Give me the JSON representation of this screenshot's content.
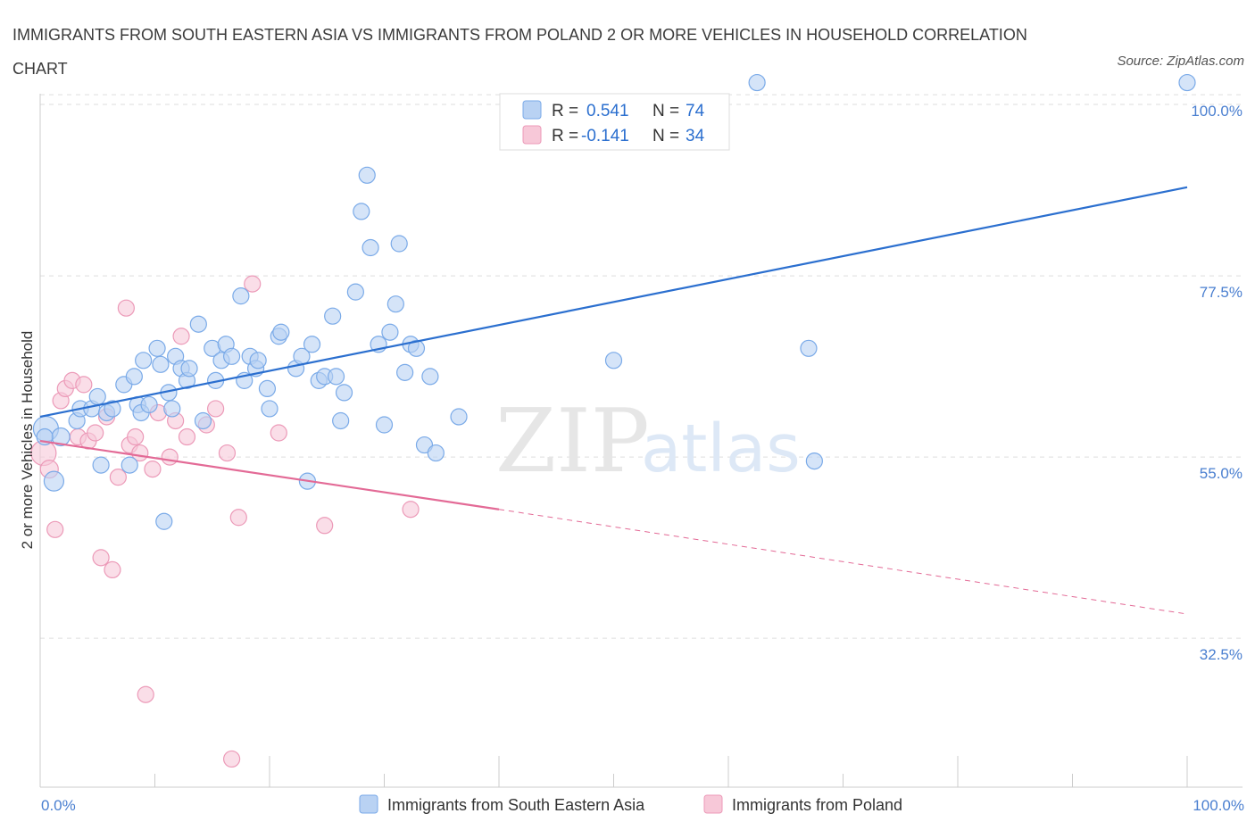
{
  "title": "IMMIGRANTS FROM SOUTH EASTERN ASIA VS IMMIGRANTS FROM POLAND 2 OR MORE VEHICLES IN HOUSEHOLD CORRELATION CHART",
  "source": "Source: ZipAtlas.com",
  "watermark": {
    "zip": "ZIP",
    "atlas": "atlas"
  },
  "colors": {
    "blue": "#7aaae8",
    "blue_fill": "#b9d2f3",
    "blue_line": "#2b6fcf",
    "pink": "#ec9ab8",
    "pink_fill": "#f7c8d8",
    "pink_line": "#e36a96",
    "axis_text": "#4a7fd0",
    "grid": "#dddddd"
  },
  "chart_data": {
    "type": "scatter",
    "xlabel": "",
    "ylabel": "2 or more Vehicles in Household",
    "xlim": [
      0,
      100
    ],
    "ylim": [
      14,
      104
    ],
    "x_tick_labels": [
      "0.0%",
      "100.0%"
    ],
    "y_ticks": [
      32.5,
      55.0,
      77.5,
      100.0
    ],
    "y_tick_labels": [
      "32.5%",
      "55.0%",
      "77.5%",
      "100.0%"
    ],
    "grid": "horizontal dashed",
    "legend": {
      "placement": "top-center",
      "rows": [
        {
          "r_label": "R = ",
          "r_value": "0.541",
          "n_label": "N = ",
          "n_value": "74"
        },
        {
          "r_label": "R = ",
          "r_value": "-0.141",
          "n_label": "N = ",
          "n_value": "34"
        }
      ]
    },
    "series": [
      {
        "name": "Immigrants from South Eastern Asia",
        "color": "#7aaae8",
        "trend": {
          "x": [
            0,
            100
          ],
          "y": [
            60.0,
            88.5
          ]
        },
        "points": [
          [
            0.5,
            58.5
          ],
          [
            1.2,
            52.0
          ],
          [
            1.8,
            57.5
          ],
          [
            3.2,
            59.5
          ],
          [
            3.5,
            61.0
          ],
          [
            4.5,
            61.0
          ],
          [
            5.0,
            62.5
          ],
          [
            5.3,
            54.0
          ],
          [
            5.8,
            60.5
          ],
          [
            6.3,
            61.0
          ],
          [
            7.3,
            64.0
          ],
          [
            7.8,
            54.0
          ],
          [
            8.2,
            65.0
          ],
          [
            8.5,
            61.5
          ],
          [
            8.8,
            60.5
          ],
          [
            9.0,
            67.0
          ],
          [
            9.5,
            61.5
          ],
          [
            10.2,
            68.5
          ],
          [
            10.5,
            66.5
          ],
          [
            10.8,
            47.0
          ],
          [
            11.2,
            63.0
          ],
          [
            11.5,
            61.0
          ],
          [
            11.8,
            67.5
          ],
          [
            12.3,
            66.0
          ],
          [
            12.8,
            64.5
          ],
          [
            13.0,
            66.0
          ],
          [
            13.8,
            71.5
          ],
          [
            14.2,
            59.5
          ],
          [
            15.0,
            68.5
          ],
          [
            15.3,
            64.5
          ],
          [
            15.8,
            67.0
          ],
          [
            16.2,
            69.0
          ],
          [
            16.7,
            67.5
          ],
          [
            17.5,
            75.0
          ],
          [
            17.8,
            64.5
          ],
          [
            18.3,
            67.5
          ],
          [
            18.8,
            66.0
          ],
          [
            19.0,
            67.0
          ],
          [
            19.8,
            63.5
          ],
          [
            20.0,
            61.0
          ],
          [
            20.8,
            70.0
          ],
          [
            21.0,
            70.5
          ],
          [
            22.3,
            66.0
          ],
          [
            22.8,
            67.5
          ],
          [
            23.3,
            52.0
          ],
          [
            23.7,
            69.0
          ],
          [
            24.3,
            64.5
          ],
          [
            24.8,
            65.0
          ],
          [
            25.5,
            72.5
          ],
          [
            25.8,
            65.0
          ],
          [
            26.5,
            63.0
          ],
          [
            26.2,
            59.5
          ],
          [
            27.5,
            75.5
          ],
          [
            28.0,
            85.5
          ],
          [
            28.5,
            90.0
          ],
          [
            28.8,
            81.0
          ],
          [
            29.5,
            69.0
          ],
          [
            30.0,
            59.0
          ],
          [
            30.5,
            70.5
          ],
          [
            31.0,
            74.0
          ],
          [
            31.3,
            81.5
          ],
          [
            31.8,
            65.5
          ],
          [
            32.3,
            69.0
          ],
          [
            32.8,
            68.5
          ],
          [
            33.5,
            56.5
          ],
          [
            34.0,
            65.0
          ],
          [
            34.5,
            55.5
          ],
          [
            36.5,
            60.0
          ],
          [
            50.0,
            67.0
          ],
          [
            62.5,
            101.5
          ],
          [
            67.0,
            68.5
          ],
          [
            67.5,
            54.5
          ],
          [
            100.0,
            101.5
          ],
          [
            0.4,
            57.5
          ]
        ],
        "sizes": [
          14,
          11,
          10,
          9,
          9,
          9,
          9,
          9,
          9,
          9,
          9,
          9,
          9,
          9,
          9,
          9,
          9,
          9,
          9,
          9,
          9,
          9,
          9,
          9,
          9,
          9,
          9,
          9,
          9,
          9,
          9,
          9,
          9,
          9,
          9,
          9,
          9,
          9,
          9,
          9,
          9,
          9,
          9,
          9,
          9,
          9,
          9,
          9,
          9,
          9,
          9,
          9,
          9,
          9,
          9,
          9,
          9,
          9,
          9,
          9,
          9,
          9,
          9,
          9,
          9,
          9,
          9,
          9,
          9,
          9,
          9,
          9,
          9,
          9
        ]
      },
      {
        "name": "Immigrants from Poland",
        "color": "#ec9ab8",
        "trend": {
          "x": [
            0,
            40
          ],
          "y": [
            57.0,
            48.5
          ],
          "dashed_to": {
            "x": 100,
            "y": 35.5
          }
        },
        "points": [
          [
            0.3,
            55.5
          ],
          [
            0.8,
            53.5
          ],
          [
            1.3,
            46.0
          ],
          [
            1.8,
            62.0
          ],
          [
            2.2,
            63.5
          ],
          [
            2.8,
            64.5
          ],
          [
            3.3,
            57.5
          ],
          [
            3.8,
            64.0
          ],
          [
            4.2,
            57.0
          ],
          [
            4.8,
            58.0
          ],
          [
            5.3,
            42.5
          ],
          [
            5.8,
            60.0
          ],
          [
            6.3,
            41.0
          ],
          [
            6.8,
            52.5
          ],
          [
            7.5,
            73.5
          ],
          [
            7.8,
            56.5
          ],
          [
            8.3,
            57.5
          ],
          [
            8.7,
            55.5
          ],
          [
            9.2,
            25.5
          ],
          [
            9.8,
            53.5
          ],
          [
            10.3,
            60.5
          ],
          [
            11.3,
            55.0
          ],
          [
            11.8,
            59.5
          ],
          [
            12.3,
            70.0
          ],
          [
            12.8,
            57.5
          ],
          [
            14.5,
            59.0
          ],
          [
            15.3,
            61.0
          ],
          [
            16.3,
            55.5
          ],
          [
            16.7,
            17.5
          ],
          [
            17.3,
            47.5
          ],
          [
            18.5,
            76.5
          ],
          [
            20.8,
            58.0
          ],
          [
            24.8,
            46.5
          ],
          [
            32.3,
            48.5
          ]
        ],
        "sizes": [
          14,
          10,
          9,
          9,
          9,
          9,
          9,
          9,
          9,
          9,
          9,
          9,
          9,
          9,
          9,
          9,
          9,
          9,
          9,
          9,
          9,
          9,
          9,
          9,
          9,
          9,
          9,
          9,
          9,
          9,
          9,
          9,
          9,
          9
        ]
      }
    ]
  }
}
